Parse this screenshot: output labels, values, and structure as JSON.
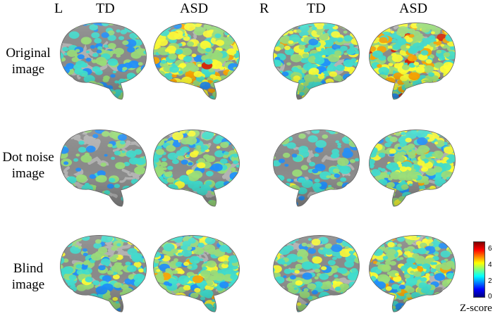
{
  "headers": {
    "left_hemisphere": "L",
    "right_hemisphere": "R",
    "td": "TD",
    "asd": "ASD"
  },
  "rows": [
    {
      "line1": "Original",
      "line2": "image"
    },
    {
      "line1": "Dot noise",
      "line2": "image"
    },
    {
      "line1": "Blind",
      "line2": "image"
    }
  ],
  "colorbar": {
    "label": "Z-score",
    "ticks": [
      "6",
      "4",
      "2",
      "0"
    ],
    "colors": [
      "#00007f",
      "#0000ff",
      "#00ffff",
      "#ffff00",
      "#ff0000",
      "#7f0000"
    ]
  },
  "panels": [
    {
      "row": "Original",
      "hemisphere": "L",
      "group": "TD",
      "activation": 0.35
    },
    {
      "row": "Original",
      "hemisphere": "L",
      "group": "ASD",
      "activation": 0.85
    },
    {
      "row": "Original",
      "hemisphere": "R",
      "group": "TD",
      "activation": 0.65
    },
    {
      "row": "Original",
      "hemisphere": "R",
      "group": "ASD",
      "activation": 1.0
    },
    {
      "row": "Dot noise",
      "hemisphere": "L",
      "group": "TD",
      "activation": 0.12
    },
    {
      "row": "Dot noise",
      "hemisphere": "L",
      "group": "ASD",
      "activation": 0.5
    },
    {
      "row": "Dot noise",
      "hemisphere": "R",
      "group": "TD",
      "activation": 0.2
    },
    {
      "row": "Dot noise",
      "hemisphere": "R",
      "group": "ASD",
      "activation": 0.7
    },
    {
      "row": "Blind",
      "hemisphere": "L",
      "group": "TD",
      "activation": 0.4
    },
    {
      "row": "Blind",
      "hemisphere": "L",
      "group": "ASD",
      "activation": 0.75
    },
    {
      "row": "Blind",
      "hemisphere": "R",
      "group": "TD",
      "activation": 0.45
    },
    {
      "row": "Blind",
      "hemisphere": "R",
      "group": "ASD",
      "activation": 0.8
    }
  ]
}
